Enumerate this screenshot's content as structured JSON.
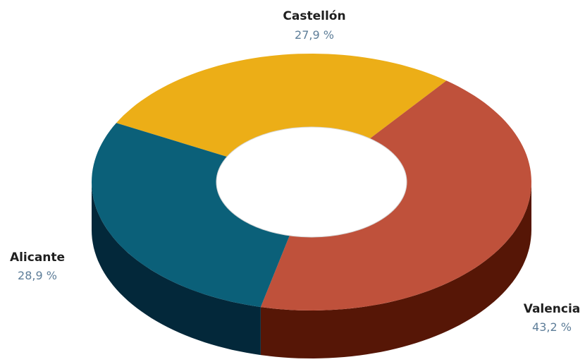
{
  "chart_data": {
    "type": "pie",
    "style": "3d-donut",
    "slices": [
      {
        "label": "Castellón",
        "display": "27,9 %",
        "value": 27.9,
        "color": "#ecae17",
        "side_color": "#b3840f"
      },
      {
        "label": "Valencia",
        "display": "43,2 %",
        "value": 43.2,
        "color": "#bf513b",
        "side_color": "#561606"
      },
      {
        "label": "Alicante",
        "display": "28,9 %",
        "value": 28.9,
        "color": "#0b6079",
        "side_color": "#03283a"
      }
    ]
  }
}
